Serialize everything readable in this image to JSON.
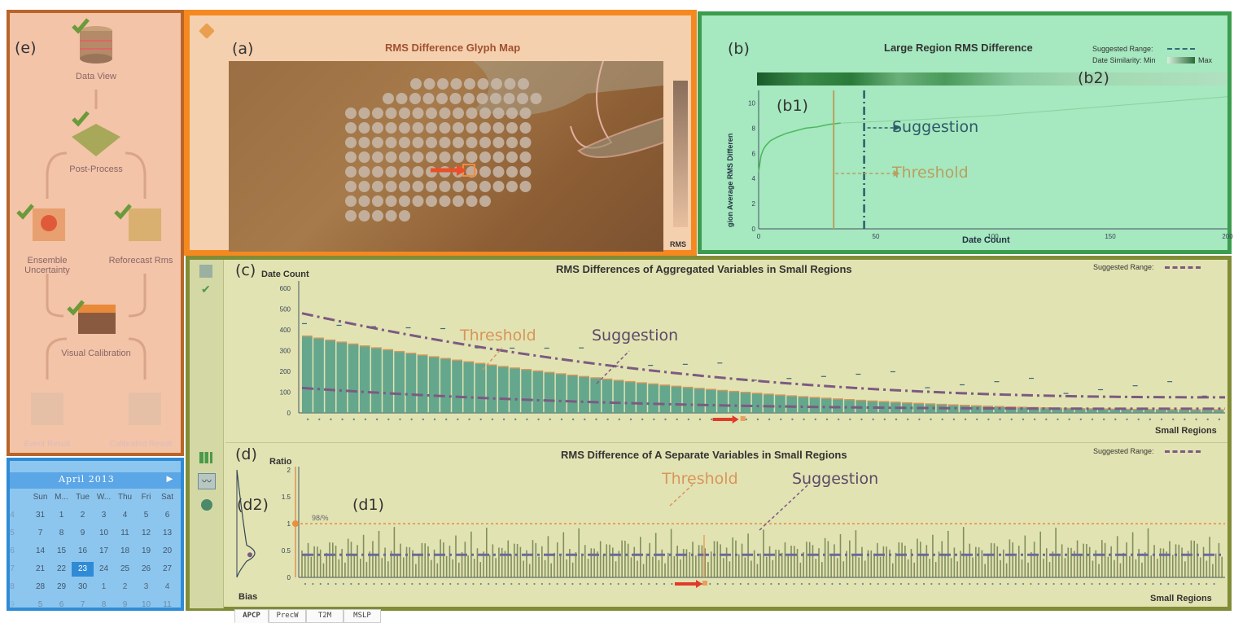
{
  "labels": {
    "e": "(e)",
    "a": "(a)",
    "b": "(b)",
    "b1": "(b1)",
    "b2": "(b2)",
    "c": "(c)",
    "d": "(d)",
    "d1": "(d1)",
    "d2": "(d2)"
  },
  "workflow": {
    "nodes": [
      "Data View",
      "Post-Process",
      "Ensemble Uncertainty",
      "Reforecast Rms",
      "Visual Calibration",
      "Event Result",
      "Calibrated Result"
    ]
  },
  "calendar": {
    "month": "April 2013",
    "weekdays": [
      "Sun",
      "M...",
      "Tue",
      "W...",
      "Thu",
      "Fri",
      "Sat"
    ],
    "weeks": [
      [
        "4",
        "31",
        "1",
        "2",
        "3",
        "4",
        "5",
        "6"
      ],
      [
        "5",
        "7",
        "8",
        "9",
        "10",
        "11",
        "12",
        "13"
      ],
      [
        "6",
        "14",
        "15",
        "16",
        "17",
        "18",
        "19",
        "20"
      ],
      [
        "7",
        "21",
        "22",
        "23",
        "24",
        "25",
        "26",
        "27"
      ],
      [
        "8",
        "28",
        "29",
        "30",
        "1",
        "2",
        "3",
        "4"
      ],
      [
        "9",
        "5",
        "6",
        "7",
        "8",
        "9",
        "10",
        "11"
      ]
    ],
    "selected": "23"
  },
  "glyph_map": {
    "title": "RMS Difference Glyph Map",
    "legend_label": "RMS"
  },
  "large_region": {
    "title": "Large Region RMS Difference",
    "legend_range": "Suggested Range:",
    "legend_similarity": "Date Similarity: Min",
    "legend_max": "Max",
    "ylabel": "gion Average RMS Differen",
    "xlabel": "Date Count",
    "suggestion": "Suggestion",
    "threshold": "Threshold"
  },
  "aggregated": {
    "title": "RMS Differences of Aggregated Variables in Small Regions",
    "legend_range": "Suggested Range:",
    "ylabel": "Date Count",
    "xlabel": "Small Regions",
    "threshold": "Threshold",
    "suggestion": "Suggestion"
  },
  "separate": {
    "title": "RMS Difference of A Separate Variables in Small Regions",
    "legend_range": "Suggested Range:",
    "ylabel": "Ratio",
    "xlabel": "Small Regions",
    "bias": "Bias",
    "pct": "98/%",
    "threshold": "Threshold",
    "suggestion": "Suggestion"
  },
  "tabs": [
    "APCP",
    "PrecW",
    "T2M",
    "MSLP"
  ],
  "chart_data": [
    {
      "type": "line",
      "title": "Large Region RMS Difference",
      "xlabel": "Date Count",
      "ylabel": "gion Average RMS Differen",
      "xlim": [
        0,
        200
      ],
      "ylim": [
        0,
        11
      ],
      "x_ticks": [
        0,
        50,
        100,
        150,
        200
      ],
      "y_ticks": [
        0,
        2,
        4,
        6,
        8,
        10
      ],
      "series": [
        {
          "x": [
            0,
            1,
            2,
            3,
            5,
            8,
            12,
            16,
            20,
            25,
            30,
            35
          ],
          "values": [
            4.5,
            5.8,
            6.3,
            6.6,
            7.0,
            7.3,
            7.6,
            7.8,
            8.0,
            8.1,
            8.3,
            8.4
          ]
        }
      ],
      "threshold_x": 32,
      "suggestion_x": 45,
      "x2": [
        35,
        60,
        80,
        100,
        120,
        140,
        160,
        180,
        200
      ],
      "values2": [
        8.4,
        8.6,
        8.8,
        9.0,
        9.3,
        9.6,
        9.9,
        10.2,
        10.5
      ]
    },
    {
      "type": "bar",
      "title": "RMS Differences of Aggregated Variables in Small Regions",
      "xlabel": "Small Regions",
      "ylabel": "Date Count",
      "ylim": [
        0,
        620
      ],
      "y_ticks": [
        0,
        100,
        200,
        300,
        400,
        500,
        600
      ],
      "bar_count": 80,
      "bar_start": 370,
      "bar_end": 15
    },
    {
      "type": "bar",
      "title": "RMS Difference of A Separate Variables in Small Regions",
      "xlabel": "Small Regions",
      "ylabel": "Ratio",
      "ylim": [
        0,
        2
      ],
      "y_ticks": [
        0,
        0.5,
        1,
        1.5,
        2
      ],
      "threshold": 1.0,
      "suggested_band": 0.42
    }
  ],
  "colors": {
    "orange": "#f5891f",
    "green": "#3a9d4e",
    "olive": "#818c37",
    "blue": "#2f8bd6",
    "brown": "#b9652a",
    "bar": "#4e9c86",
    "suggest": "#7c5a83",
    "thresh": "#d8955a"
  }
}
